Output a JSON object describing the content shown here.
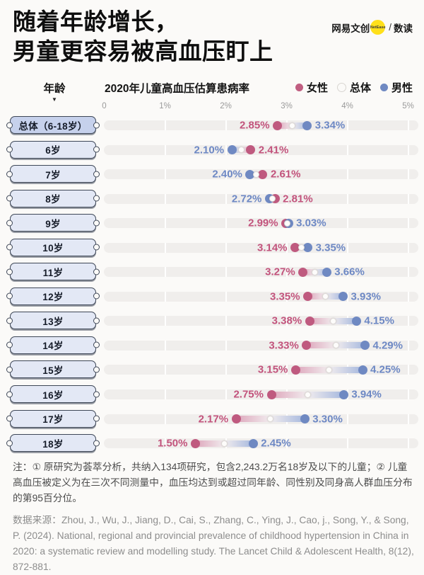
{
  "header": {
    "title_lines": [
      "随着年龄增长，",
      "男童更容易被高血压盯上"
    ],
    "logo": {
      "brand": "网易文创",
      "badge": "NetEase",
      "separator": "/",
      "channel": "数读"
    }
  },
  "chart": {
    "y_axis_header": "年龄",
    "y_axis_caret": "▼",
    "title": "2020年儿童高血压估算患病率",
    "legend": [
      {
        "label": "女性",
        "color": "#c05e81"
      },
      {
        "label": "总体",
        "color": "#fbfaf8",
        "ring": "#d8d5d1"
      },
      {
        "label": "男性",
        "color": "#6f89c2"
      }
    ]
  },
  "colors": {
    "female_dot": "#bf5a7f",
    "male_dot": "#6f89c2",
    "female_text": "#c2537c",
    "male_text": "#6d88c4",
    "female_pastel": "#dea7bc",
    "male_pastel": "#a7b9de",
    "connector_mid": "#f1ecee",
    "track": "#f0eeec"
  },
  "chart_data": {
    "type": "scatter",
    "variant": "dumbbell-dot-plot (horizontal)",
    "title": "2020年儿童高血压估算患病率",
    "unit": "%",
    "xlim": [
      0,
      5
    ],
    "x_ticks": [
      "0",
      "1%",
      "2%",
      "3%",
      "4%",
      "5%"
    ],
    "grid": true,
    "legend_position": "top-right",
    "categories": [
      "总体（6-18岁）",
      "6岁",
      "7岁",
      "8岁",
      "9岁",
      "10岁",
      "11岁",
      "12岁",
      "13岁",
      "14岁",
      "15岁",
      "16岁",
      "17岁",
      "18岁"
    ],
    "series": [
      {
        "name": "女性",
        "color": "#bf5a7f",
        "values": [
          2.85,
          2.41,
          2.61,
          2.81,
          2.99,
          3.14,
          3.27,
          3.35,
          3.38,
          3.33,
          3.15,
          2.75,
          2.17,
          1.5
        ]
      },
      {
        "name": "男性",
        "color": "#6f89c2",
        "values": [
          3.34,
          2.1,
          2.4,
          2.72,
          3.03,
          3.35,
          3.66,
          3.93,
          4.15,
          4.29,
          4.25,
          3.94,
          3.3,
          2.45
        ]
      },
      {
        "name": "总体",
        "color": "#ffffff",
        "note": "unlabeled white dot rendered at the midpoint of 女性/男性 values"
      }
    ]
  },
  "notes": {
    "note": "注：① 原研究为荟萃分析，共纳入134项研究，包含2,243.2万名18岁及以下的儿童；② 儿童高血压被定义为在三次不同测量中，血压均达到或超过同年龄、同性别及同身高人群血压分布的第95百分位。",
    "source": "数据来源：Zhou, J., Wu, J., Jiang, D., Cai, S., Zhang, C., Ying, J., Cao, j., Song, Y., & Song, P. (2024). National, regional and provincial prevalence of childhood hypertension in China in 2020: a systematic review and modelling study. The Lancet Child & Adolescent Health, 8(12), 872-881."
  }
}
